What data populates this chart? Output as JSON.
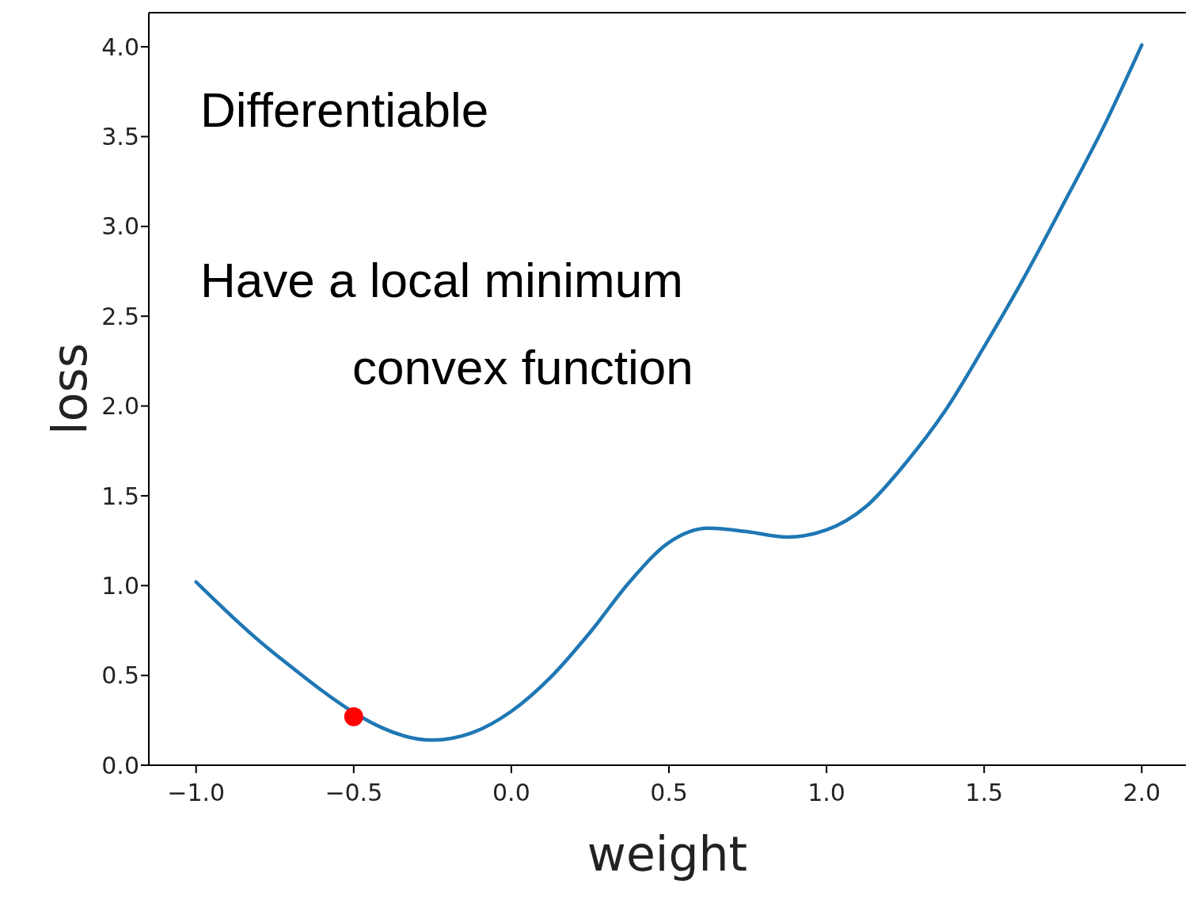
{
  "chart_data": {
    "type": "line",
    "xlabel": "weight",
    "ylabel": "loss",
    "annotations": [
      "Differentiable",
      "Have a local minimum",
      "convex function"
    ],
    "xlim": [
      -1.15,
      2.14
    ],
    "xticks": [
      {
        "value": -1,
        "label": "−1.0"
      },
      {
        "value": -0.5,
        "label": "−0.5"
      },
      {
        "value": 0,
        "label": "0.0"
      },
      {
        "value": 0.5,
        "label": "0.5"
      },
      {
        "value": 1,
        "label": "1.0"
      },
      {
        "value": 1.5,
        "label": "1.5"
      },
      {
        "value": 2,
        "label": "2.0"
      }
    ],
    "ylim": [
      0,
      4.19
    ],
    "yticks": [
      {
        "value": 0,
        "label": "0.0"
      },
      {
        "value": 0.5,
        "label": "0.5"
      },
      {
        "value": 1,
        "label": "1.0"
      },
      {
        "value": 1.5,
        "label": "1.5"
      },
      {
        "value": 2,
        "label": "2.0"
      },
      {
        "value": 2.5,
        "label": "2.5"
      },
      {
        "value": 3,
        "label": "3.0"
      },
      {
        "value": 3.5,
        "label": "3.5"
      },
      {
        "value": 4,
        "label": "4.0"
      }
    ],
    "series": [
      {
        "color": "#1f77b4",
        "marker": "none",
        "line_style": "solid",
        "x": [
          -1,
          -0.75,
          -0.25,
          -0.125,
          0,
          0.125,
          0.25,
          0.375,
          0.5,
          0.625,
          0.75,
          0.875,
          1,
          1.125,
          1.25,
          1.375,
          1.5,
          1.625,
          1.75,
          1.875,
          2
        ],
        "values": [
          1.02,
          0.62,
          0.14,
          0.18,
          0.3,
          0.49,
          0.74,
          1.02,
          1.24,
          1.32,
          1.3,
          1.27,
          1.31,
          1.44,
          1.68,
          1.97,
          2.33,
          2.71,
          3.12,
          3.54,
          4.01
        ]
      },
      {
        "type": "scatter",
        "color": "#ff0000",
        "marker": "circle",
        "x": [
          -0.5
        ],
        "values": [
          0.27
        ]
      }
    ]
  }
}
